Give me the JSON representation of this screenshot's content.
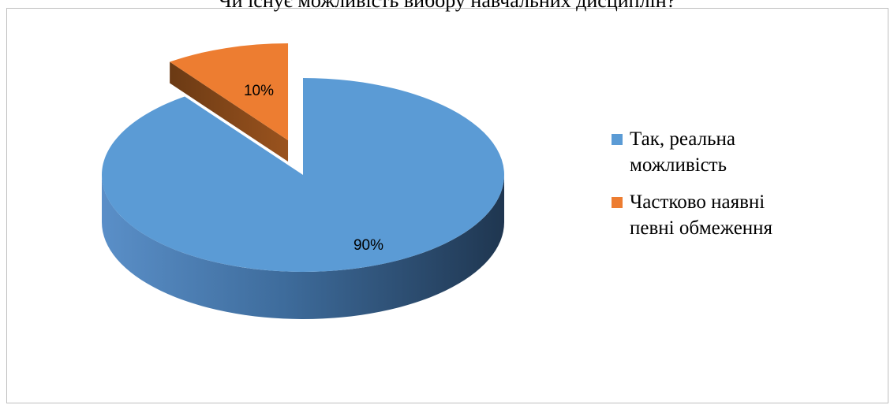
{
  "chart_data": {
    "type": "pie",
    "title": "Чи існує можливість вибору навчальних дисциплін?",
    "categories": [
      "Так, реальна можливість",
      "Частково наявні певні обмеження"
    ],
    "values": [
      90,
      10
    ],
    "data_labels": [
      "90%",
      "10%"
    ],
    "colors": [
      "#5B9BD5",
      "#ED7D31"
    ],
    "exploded": [
      false,
      true
    ],
    "style": "3d",
    "legend": "right"
  },
  "legend": {
    "items": [
      {
        "label_line1": "Так, реальна",
        "label_line2": "можливість",
        "color": "#5B9BD5"
      },
      {
        "label_line1": "Частково наявні",
        "label_line2": "певні обмеження",
        "color": "#ED7D31"
      }
    ]
  }
}
